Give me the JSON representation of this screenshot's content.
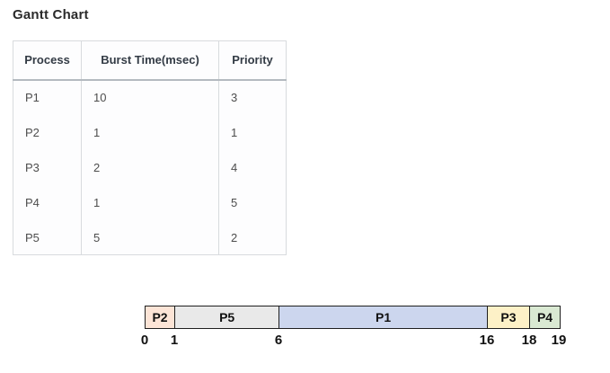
{
  "page": {
    "title": "Gantt Chart"
  },
  "table": {
    "headers": [
      "Process",
      "Burst Time(msec)",
      "Priority"
    ],
    "rows": [
      [
        "P1",
        "10",
        "3"
      ],
      [
        "P2",
        "1",
        "1"
      ],
      [
        "P3",
        "2",
        "4"
      ],
      [
        "P4",
        "1",
        "5"
      ],
      [
        "P5",
        "5",
        "2"
      ]
    ]
  },
  "chart_data": {
    "type": "gantt",
    "title": "Gantt Chart",
    "time_unit": "msec",
    "xlim": [
      0,
      19
    ],
    "segments": [
      {
        "label": "P2",
        "start": 0,
        "end": 1,
        "color": "#fce4d6"
      },
      {
        "label": "P5",
        "start": 1,
        "end": 6,
        "color": "#e9e9e9"
      },
      {
        "label": "P1",
        "start": 6,
        "end": 16,
        "color": "#ccd6ee"
      },
      {
        "label": "P3",
        "start": 16,
        "end": 18,
        "color": "#fdf1c7"
      },
      {
        "label": "P4",
        "start": 18,
        "end": 19,
        "color": "#d9e9d2"
      }
    ],
    "ticks": [
      "0",
      "1",
      "6",
      "16",
      "18",
      "19"
    ]
  }
}
